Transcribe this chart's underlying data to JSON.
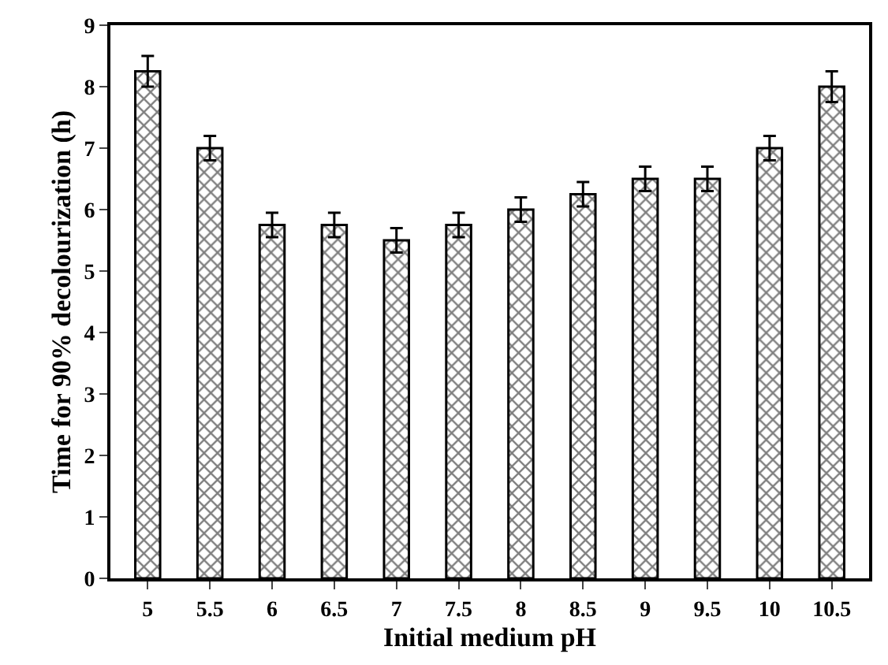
{
  "chart_data": {
    "type": "bar",
    "xlabel": "Initial medium pH",
    "ylabel": "Time for 90% decolourization (h)",
    "categories": [
      "5",
      "5.5",
      "6",
      "6.5",
      "7",
      "7.5",
      "8",
      "8.5",
      "9",
      "9.5",
      "10",
      "10.5"
    ],
    "values": [
      8.25,
      7.0,
      5.75,
      5.75,
      5.5,
      5.75,
      6.0,
      6.25,
      6.5,
      6.5,
      7.0,
      8.0
    ],
    "errors": [
      0.25,
      0.2,
      0.2,
      0.2,
      0.2,
      0.2,
      0.2,
      0.2,
      0.2,
      0.2,
      0.2,
      0.25
    ],
    "color": "#000000",
    "ylim": [
      0,
      9
    ],
    "yticks": [
      0,
      1,
      2,
      3,
      4,
      5,
      6,
      7,
      8,
      9
    ]
  }
}
